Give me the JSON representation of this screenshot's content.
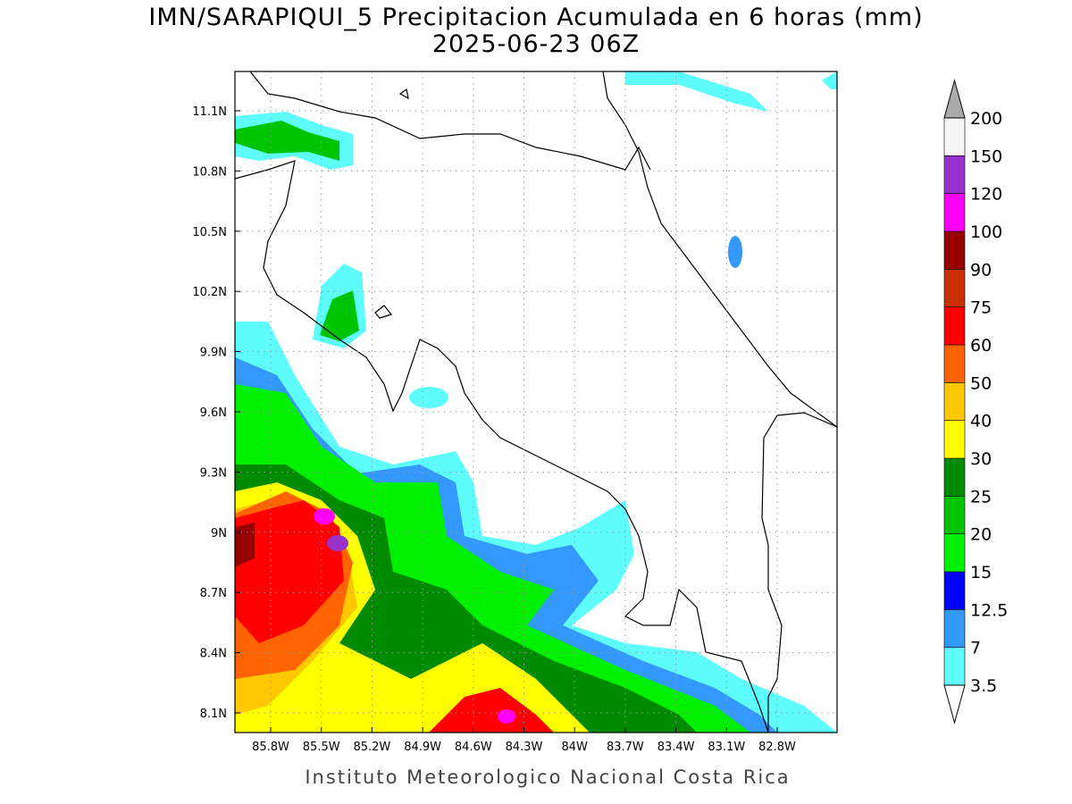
{
  "title": "IMN/SARAPIQUI_5 Precipitacion Acumulada en 6 horas (mm)",
  "subtitle": "2025-06-23 06Z",
  "map": {
    "lon_labels": [
      "85.8W",
      "85.5W",
      "85.2W",
      "84.9W",
      "84.6W",
      "84.3W",
      "84W",
      "83.7W",
      "83.4W",
      "83.1W",
      "82.8W"
    ],
    "lat_labels": [
      "11.1N",
      "10.8N",
      "10.5N",
      "10.2N",
      "9.9N",
      "9.6N",
      "9.3N",
      "9N",
      "8.7N",
      "8.4N",
      "8.1N"
    ]
  },
  "colorbar": {
    "levels": [
      3.5,
      7,
      12.5,
      15,
      20,
      25,
      30,
      40,
      50,
      60,
      75,
      90,
      100,
      120,
      150,
      200
    ],
    "colors": [
      "#5ffcfc",
      "#3399ff",
      "#0000ff",
      "#00f000",
      "#00c400",
      "#008a00",
      "#ffff00",
      "#ffc800",
      "#ff6400",
      "#ff0000",
      "#c83200",
      "#960000",
      "#ff00ff",
      "#9932cc",
      "#f5f5f5"
    ],
    "under_color": "#ffffff",
    "over_color": "#aaaaaa"
  },
  "footer": "Instituto Meteorologico Nacional Costa Rica"
}
